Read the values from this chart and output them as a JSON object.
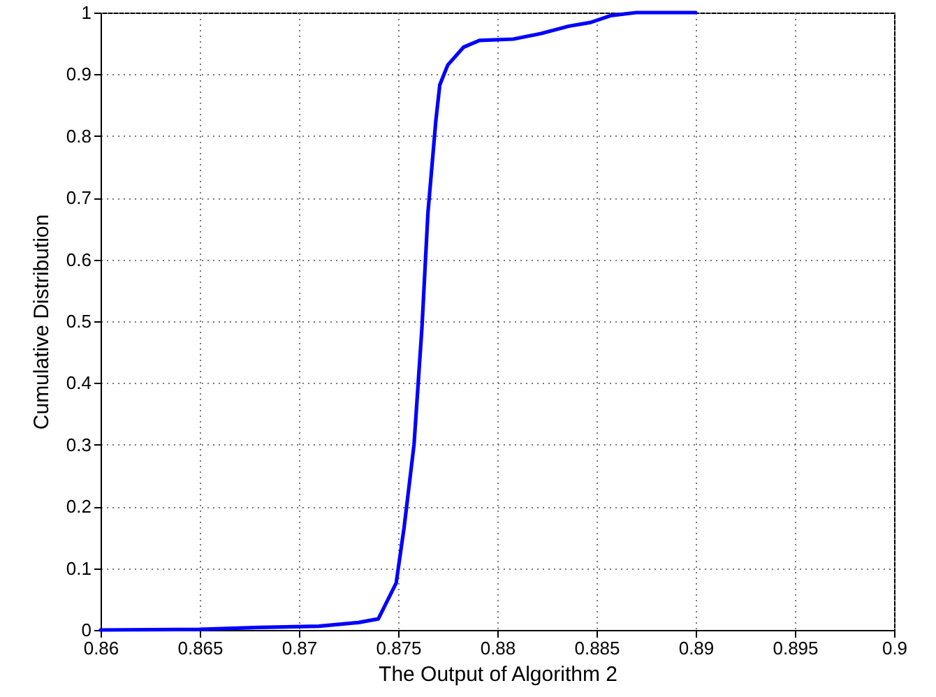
{
  "chart_data": {
    "type": "line",
    "xlabel": "The Output of Algorithm 2",
    "ylabel": "Cumulative Distribution",
    "x": [
      0.86,
      0.865,
      0.868,
      0.871,
      0.873,
      0.874,
      0.8749,
      0.8753,
      0.8758,
      0.8762,
      0.8765,
      0.8769,
      0.8771,
      0.8775,
      0.8783,
      0.8791,
      0.8808,
      0.8822,
      0.8836,
      0.8847,
      0.8857,
      0.887,
      0.89
    ],
    "series": [
      {
        "color": "#0000ff",
        "values": [
          0,
          0.001,
          0.004,
          0.006,
          0.012,
          0.018,
          0.076,
          0.166,
          0.3,
          0.49,
          0.675,
          0.825,
          0.883,
          0.915,
          0.944,
          0.955,
          0.957,
          0.966,
          0.978,
          0.984,
          0.995,
          1,
          1
        ]
      }
    ],
    "xlim": [
      0.86,
      0.9
    ],
    "xticks": [
      0.86,
      0.865,
      0.87,
      0.875,
      0.88,
      0.885,
      0.89,
      0.895,
      0.9
    ],
    "ylim": [
      0,
      1
    ],
    "yticks": [
      0,
      0.1,
      0.2,
      0.3,
      0.4,
      0.5,
      0.6,
      0.7,
      0.8,
      0.9,
      1
    ],
    "grid": true,
    "marker": "none",
    "line_style": "solid"
  }
}
